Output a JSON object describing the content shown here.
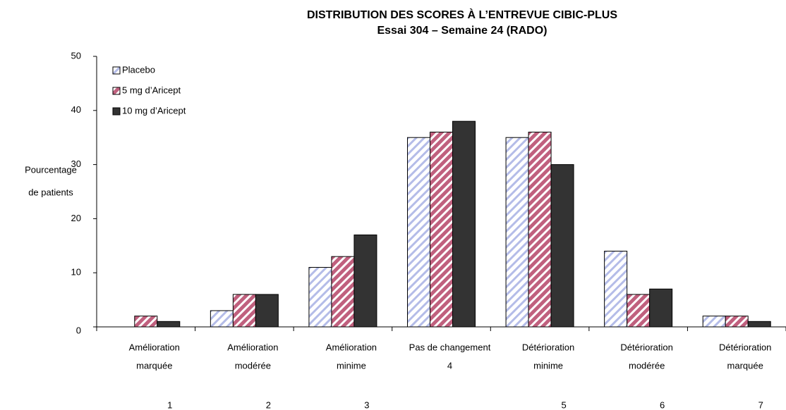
{
  "chart_data": {
    "type": "bar",
    "title": [
      "DISTRIBUTION DES SCORES À L’ENTREVUE CIBIC-PLUS",
      "Essai 304 – Semaine 24 (RADO)"
    ],
    "ylabel": [
      "Pourcentage",
      "de patients"
    ],
    "categories": [
      [
        "Amélioration",
        "marquée"
      ],
      [
        "Amélioration",
        "modérée"
      ],
      [
        "Amélioration",
        "minime"
      ],
      [
        "Pas de changement",
        "4"
      ],
      [
        "Détérioration",
        "minime"
      ],
      [
        "Détérioration",
        "modérée"
      ],
      [
        "Détérioration",
        "marquée"
      ]
    ],
    "score_numbers": [
      1,
      2,
      3,
      null,
      5,
      6,
      7
    ],
    "series": [
      {
        "name": "Placebo",
        "color": "#b4bce8",
        "pattern": "diagonal",
        "values": [
          0,
          3,
          11,
          35,
          35,
          14,
          2
        ]
      },
      {
        "name": "5 mg d’Aricept",
        "color": "#c0607e",
        "pattern": "diagonal",
        "values": [
          2,
          6,
          13,
          36,
          36,
          6,
          2
        ]
      },
      {
        "name": "10 mg d’Aricept",
        "color": "#333333",
        "values": [
          1,
          6,
          17,
          38,
          30,
          7,
          1
        ]
      }
    ],
    "ylim": [
      0,
      50
    ],
    "yticks": [
      0,
      10,
      20,
      30,
      40,
      50
    ],
    "grid": false,
    "legend": "top-left"
  }
}
